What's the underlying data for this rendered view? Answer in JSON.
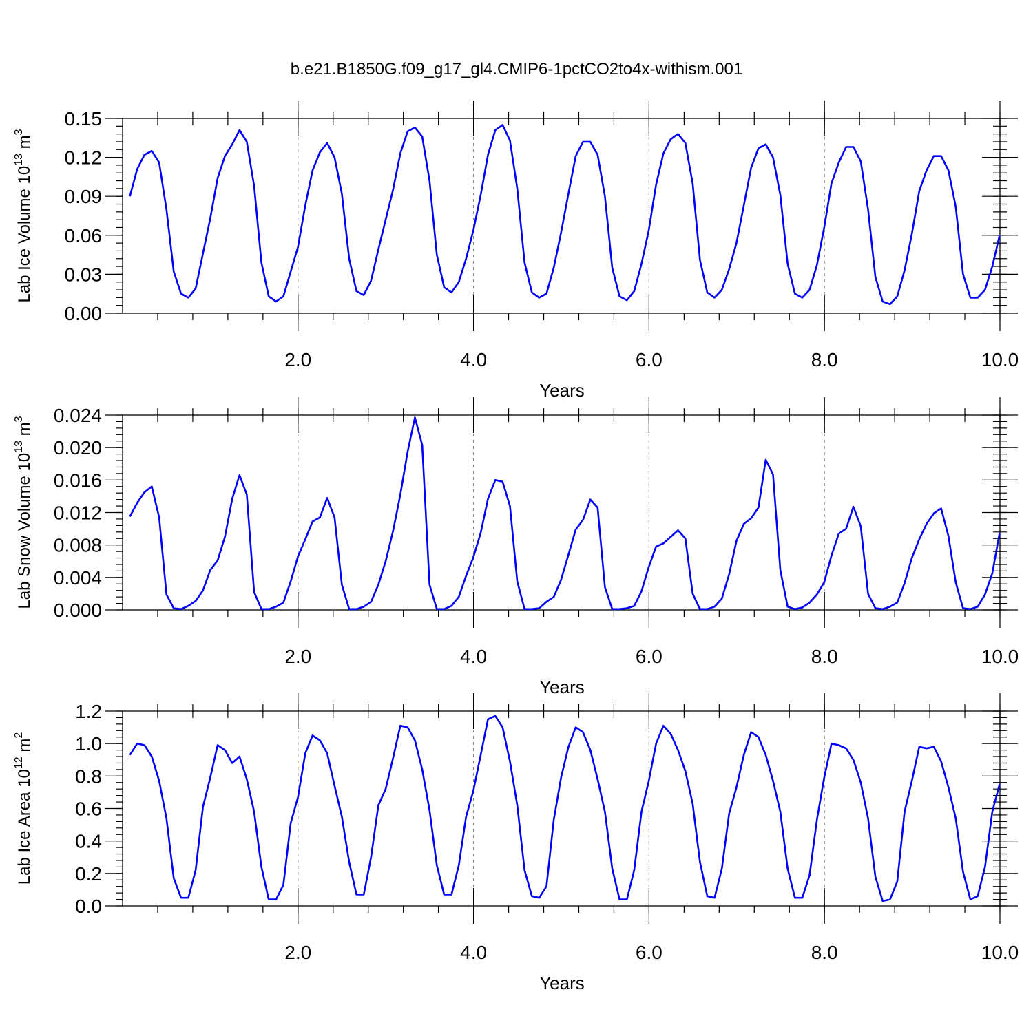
{
  "chart_title": "b.e21.B1850G.f09_g17_gl4.CMIP6-1pctCO2to4x-withism.001",
  "series_color": "#0000ff",
  "chart_data": [
    {
      "type": "line",
      "ylabel": {
        "main": "Lab Ice Volume 10",
        "exp": "13",
        "unit": " m",
        "unit_exp": "3"
      },
      "xlabel": "Years",
      "xlim": [
        0.0,
        10.0
      ],
      "ylim": [
        0.0,
        0.15
      ],
      "xticks": [
        2.0,
        4.0,
        6.0,
        8.0,
        10.0
      ],
      "xtick_labels": [
        "2.0",
        "4.0",
        "6.0",
        "8.0",
        "10.0"
      ],
      "yticks": [
        0.0,
        0.03,
        0.06,
        0.09,
        0.12,
        0.15
      ],
      "ytick_labels": [
        "0.00",
        "0.03",
        "0.06",
        "0.09",
        "0.12",
        "0.15"
      ],
      "yminor_step": 0.006,
      "grid_x": [
        2.0,
        4.0,
        6.0,
        8.0
      ],
      "x_start": 0.0833,
      "x_step": 0.0833,
      "values": [
        0.09,
        0.111,
        0.122,
        0.125,
        0.116,
        0.08,
        0.032,
        0.015,
        0.012,
        0.019,
        0.046,
        0.073,
        0.104,
        0.121,
        0.13,
        0.141,
        0.132,
        0.098,
        0.039,
        0.013,
        0.009,
        0.013,
        0.032,
        0.051,
        0.083,
        0.11,
        0.124,
        0.131,
        0.12,
        0.092,
        0.042,
        0.017,
        0.014,
        0.025,
        0.049,
        0.072,
        0.095,
        0.123,
        0.14,
        0.143,
        0.136,
        0.102,
        0.045,
        0.02,
        0.016,
        0.024,
        0.042,
        0.064,
        0.091,
        0.122,
        0.141,
        0.145,
        0.133,
        0.096,
        0.039,
        0.016,
        0.012,
        0.015,
        0.035,
        0.062,
        0.092,
        0.121,
        0.132,
        0.132,
        0.122,
        0.09,
        0.035,
        0.013,
        0.01,
        0.017,
        0.038,
        0.064,
        0.099,
        0.123,
        0.134,
        0.138,
        0.131,
        0.1,
        0.041,
        0.016,
        0.012,
        0.018,
        0.034,
        0.054,
        0.083,
        0.112,
        0.127,
        0.13,
        0.12,
        0.091,
        0.038,
        0.015,
        0.012,
        0.018,
        0.037,
        0.066,
        0.1,
        0.116,
        0.128,
        0.128,
        0.117,
        0.08,
        0.028,
        0.009,
        0.007,
        0.013,
        0.033,
        0.061,
        0.094,
        0.11,
        0.121,
        0.121,
        0.11,
        0.082,
        0.03,
        0.012,
        0.012,
        0.018,
        0.036,
        0.06
      ]
    },
    {
      "type": "line",
      "ylabel": {
        "main": "Lab Snow Volume 10",
        "exp": "13",
        "unit": " m",
        "unit_exp": "3"
      },
      "xlabel": "Years",
      "xlim": [
        0.0,
        10.0
      ],
      "ylim": [
        0.0,
        0.024
      ],
      "xticks": [
        2.0,
        4.0,
        6.0,
        8.0,
        10.0
      ],
      "xtick_labels": [
        "2.0",
        "4.0",
        "6.0",
        "8.0",
        "10.0"
      ],
      "yticks": [
        0.0,
        0.004,
        0.008,
        0.012,
        0.016,
        0.02,
        0.024
      ],
      "ytick_labels": [
        "0.000",
        "0.004",
        "0.008",
        "0.012",
        "0.016",
        "0.020",
        "0.024"
      ],
      "yminor_step": 0.0008,
      "grid_x": [
        2.0,
        4.0,
        6.0,
        8.0
      ],
      "x_start": 0.0833,
      "x_step": 0.0833,
      "values": [
        0.0115,
        0.0132,
        0.0145,
        0.0152,
        0.0114,
        0.0019,
        0.0002,
        0.0001,
        0.0005,
        0.0011,
        0.0024,
        0.0049,
        0.0061,
        0.009,
        0.0137,
        0.0166,
        0.0142,
        0.0022,
        0.0001,
        0.0001,
        0.0004,
        0.0009,
        0.0035,
        0.0066,
        0.0087,
        0.0109,
        0.0114,
        0.0138,
        0.0114,
        0.0031,
        0.0001,
        0.0001,
        0.0004,
        0.001,
        0.0031,
        0.006,
        0.0097,
        0.0142,
        0.0195,
        0.0237,
        0.0203,
        0.0031,
        0.0001,
        0.0001,
        0.0005,
        0.0016,
        0.0042,
        0.0065,
        0.0095,
        0.0137,
        0.016,
        0.0158,
        0.0128,
        0.0035,
        0.0001,
        0.0001,
        0.0002,
        0.001,
        0.0016,
        0.0037,
        0.0068,
        0.0099,
        0.0111,
        0.0136,
        0.0126,
        0.0028,
        0.0001,
        0.0001,
        0.0002,
        0.0005,
        0.0023,
        0.0053,
        0.0078,
        0.0082,
        0.009,
        0.0098,
        0.0088,
        0.002,
        0.0001,
        0.0001,
        0.0004,
        0.0014,
        0.0044,
        0.0085,
        0.0106,
        0.0113,
        0.0126,
        0.0185,
        0.0167,
        0.0049,
        0.0004,
        0.0001,
        0.0003,
        0.0009,
        0.0019,
        0.0034,
        0.0067,
        0.0094,
        0.01,
        0.0127,
        0.0103,
        0.002,
        0.0002,
        0.0001,
        0.0004,
        0.0009,
        0.0033,
        0.0064,
        0.0087,
        0.0106,
        0.0119,
        0.0125,
        0.0091,
        0.0034,
        0.0002,
        0.0001,
        0.0004,
        0.0019,
        0.0045,
        0.0095
      ]
    },
    {
      "type": "line",
      "ylabel": {
        "main": "Lab Ice Area 10",
        "exp": "12",
        "unit": " m",
        "unit_exp": "2"
      },
      "xlabel": "Years",
      "xlim": [
        0.0,
        10.0
      ],
      "ylim": [
        0.0,
        1.2
      ],
      "xticks": [
        2.0,
        4.0,
        6.0,
        8.0,
        10.0
      ],
      "xtick_labels": [
        "2.0",
        "4.0",
        "6.0",
        "8.0",
        "10.0"
      ],
      "yticks": [
        0.0,
        0.2,
        0.4,
        0.6,
        0.8,
        1.0,
        1.2
      ],
      "ytick_labels": [
        "0.0",
        "0.2",
        "0.4",
        "0.6",
        "0.8",
        "1.0",
        "1.2"
      ],
      "yminor_step": 0.04,
      "grid_x": [
        2.0,
        4.0,
        6.0,
        8.0
      ],
      "x_start": 0.0833,
      "x_step": 0.0833,
      "values": [
        0.93,
        1.0,
        0.99,
        0.92,
        0.77,
        0.54,
        0.17,
        0.05,
        0.05,
        0.22,
        0.61,
        0.79,
        0.99,
        0.96,
        0.88,
        0.92,
        0.78,
        0.58,
        0.24,
        0.04,
        0.04,
        0.13,
        0.51,
        0.67,
        0.94,
        1.05,
        1.02,
        0.94,
        0.74,
        0.55,
        0.27,
        0.07,
        0.07,
        0.3,
        0.62,
        0.72,
        0.91,
        1.11,
        1.1,
        1.02,
        0.84,
        0.59,
        0.25,
        0.07,
        0.07,
        0.25,
        0.55,
        0.71,
        0.93,
        1.15,
        1.17,
        1.1,
        0.89,
        0.62,
        0.22,
        0.06,
        0.05,
        0.12,
        0.53,
        0.79,
        0.98,
        1.1,
        1.07,
        0.96,
        0.78,
        0.58,
        0.23,
        0.04,
        0.04,
        0.22,
        0.58,
        0.77,
        1.0,
        1.11,
        1.06,
        0.96,
        0.83,
        0.63,
        0.27,
        0.06,
        0.05,
        0.23,
        0.57,
        0.73,
        0.93,
        1.07,
        1.04,
        0.93,
        0.77,
        0.58,
        0.23,
        0.05,
        0.05,
        0.19,
        0.53,
        0.79,
        1.0,
        0.99,
        0.97,
        0.9,
        0.76,
        0.54,
        0.18,
        0.03,
        0.04,
        0.15,
        0.58,
        0.77,
        0.98,
        0.97,
        0.98,
        0.89,
        0.73,
        0.54,
        0.21,
        0.04,
        0.06,
        0.24,
        0.58,
        0.75
      ]
    }
  ]
}
